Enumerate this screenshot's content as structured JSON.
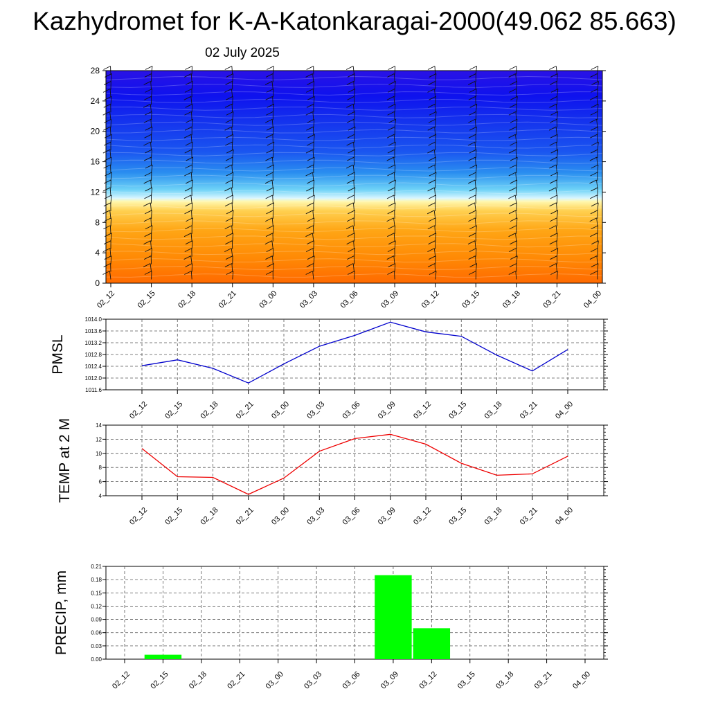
{
  "title": "Kazhydromet for K-A-Katonkaragai-2000(49.062 85.663)",
  "subtitle": "02 July 2025",
  "colors": {
    "pmsl_line": "#0000cc",
    "temp_line": "#ee0000",
    "precip_bar": "#00ff00",
    "frame": "#000000",
    "grid": "#555555"
  },
  "chart_data": [
    {
      "type": "heatmap",
      "title": "",
      "xlabel": "",
      "ylabel": "",
      "x": [
        "02_12",
        "02_15",
        "02_18",
        "02_21",
        "03_00",
        "03_03",
        "03_06",
        "03_09",
        "03_12",
        "03_15",
        "03_18",
        "03_21",
        "04_00"
      ],
      "ylim": [
        0,
        28
      ],
      "yticks": [
        0,
        4,
        8,
        12,
        16,
        20,
        24,
        28
      ],
      "description_levels": "warm (orange/yellow) below ~11, cool (cyan/blue) above",
      "overlay": "wind barbs"
    },
    {
      "type": "line",
      "ylabel": "PMSL",
      "x": [
        "02_12",
        "02_15",
        "02_18",
        "02_21",
        "03_00",
        "03_03",
        "03_06",
        "03_09",
        "03_12",
        "03_15",
        "03_18",
        "03_21",
        "04_00"
      ],
      "ylim": [
        1011.6,
        1014.0
      ],
      "yticks": [
        "1011.6",
        "1012.0",
        "1012.4",
        "1012.8",
        "1013.2",
        "1013.6",
        "1014.0"
      ],
      "series": [
        {
          "values": [
            1012.42,
            1012.62,
            1012.33,
            1011.83,
            1012.48,
            1013.08,
            1013.45,
            1013.9,
            1013.57,
            1013.42,
            1012.78,
            1012.24,
            1012.97
          ]
        }
      ]
    },
    {
      "type": "line",
      "ylabel": "TEMP at 2 M",
      "x": [
        "02_12",
        "02_15",
        "02_18",
        "02_21",
        "03_00",
        "03_03",
        "03_06",
        "03_09",
        "03_12",
        "03_15",
        "03_18",
        "03_21",
        "04_00"
      ],
      "ylim": [
        4,
        14
      ],
      "yticks": [
        "4",
        "6",
        "8",
        "10",
        "12",
        "14"
      ],
      "series": [
        {
          "values": [
            10.7,
            6.7,
            6.6,
            4.2,
            6.5,
            10.3,
            12.1,
            12.7,
            11.3,
            8.6,
            6.9,
            7.1,
            9.6
          ]
        }
      ]
    },
    {
      "type": "bar",
      "ylabel": "PRECIP, mm",
      "categories": [
        "02_12",
        "02_15",
        "02_18",
        "02_21",
        "03_00",
        "03_03",
        "03_06",
        "03_09",
        "03_12",
        "03_15",
        "03_18",
        "03_21",
        "04_00"
      ],
      "ylim": [
        0,
        0.21
      ],
      "yticks": [
        "0.00",
        "0.03",
        "0.06",
        "0.09",
        "0.12",
        "0.15",
        "0.18",
        "0.21"
      ],
      "values": [
        0,
        0.01,
        0,
        0,
        0,
        0,
        0,
        0.19,
        0.07,
        0,
        0,
        0,
        0
      ]
    }
  ]
}
